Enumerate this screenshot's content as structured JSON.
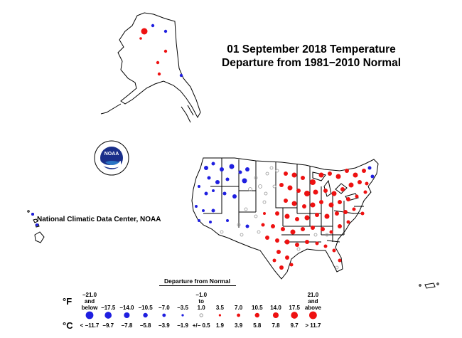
{
  "title": {
    "line1": "01 September 2018 Temperature",
    "line2": "Departure from 1981−2010 Normal"
  },
  "credit": "National Climatic Data Center, NOAA",
  "logo": {
    "name": "noaa-logo",
    "text": "NOAA",
    "ring_text": "NATIONAL OCEANIC AND ATMOSPHERIC ADMINISTRATION · U.S. DEPARTMENT OF COMMERCE"
  },
  "colors": {
    "cold": "#1f1fe0",
    "warm": "#ee1111",
    "neutral": "#999999",
    "outline": "#444444"
  },
  "legend": {
    "title": "Departure from Normal",
    "unit_f": "°F",
    "unit_c": "°C",
    "bins": [
      {
        "f": "−21.0\nand\nbelow",
        "c": "< −11.7",
        "kind": "cold",
        "size": 4
      },
      {
        "f": "−17.5",
        "c": "−9.7",
        "kind": "cold",
        "size": 3.6
      },
      {
        "f": "−14.0",
        "c": "−7.8",
        "kind": "cold",
        "size": 3
      },
      {
        "f": "−10.5",
        "c": "−5.8",
        "kind": "cold",
        "size": 2.4
      },
      {
        "f": "−7.0",
        "c": "−3.9",
        "kind": "cold",
        "size": 1.8
      },
      {
        "f": "−3.5",
        "c": "−1.9",
        "kind": "cold",
        "size": 1.2
      },
      {
        "f": "−1.0\nto\n1.0",
        "c": "+/− 0.5",
        "kind": "neutral",
        "size": 1.6
      },
      {
        "f": "3.5",
        "c": "1.9",
        "kind": "warm",
        "size": 1.2
      },
      {
        "f": "7.0",
        "c": "3.9",
        "kind": "warm",
        "size": 1.8
      },
      {
        "f": "10.5",
        "c": "5.8",
        "kind": "warm",
        "size": 2.4
      },
      {
        "f": "14.0",
        "c": "7.8",
        "kind": "warm",
        "size": 3
      },
      {
        "f": "17.5",
        "c": "9.7",
        "kind": "warm",
        "size": 3.6
      },
      {
        "f": "21.0\nand\nabove",
        "c": "> 11.7",
        "kind": "warm",
        "size": 4
      }
    ]
  }
}
